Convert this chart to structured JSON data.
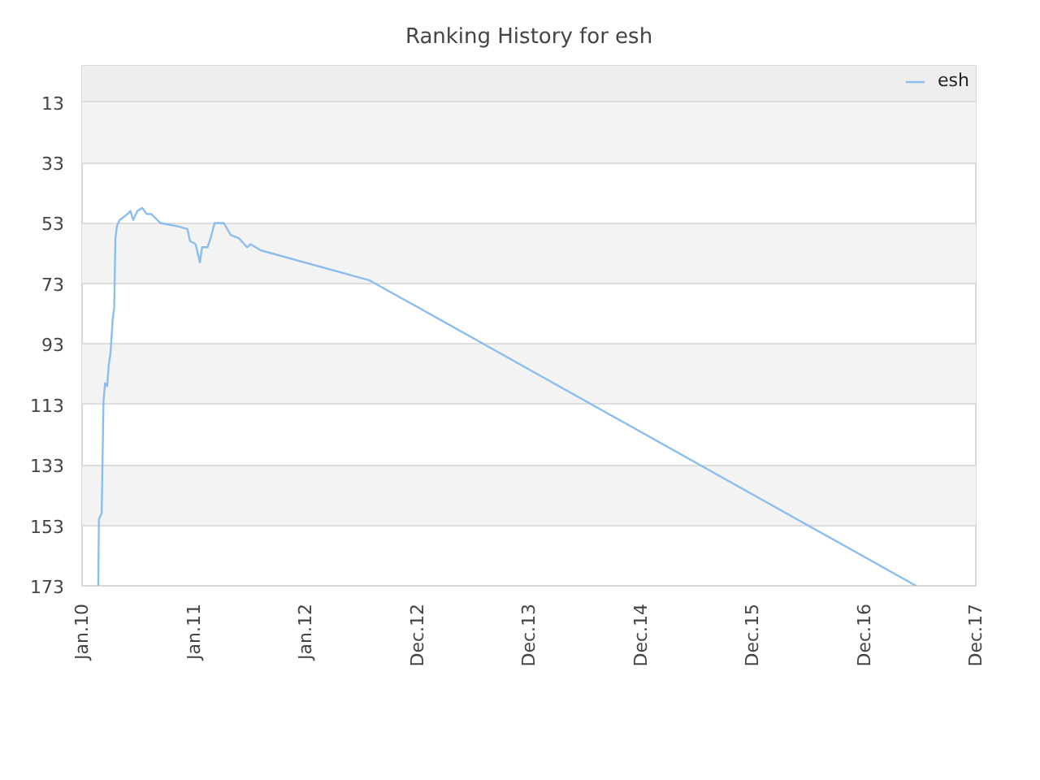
{
  "chart_data": {
    "type": "line",
    "title": "Ranking History for esh",
    "x": [
      "2010-02-23",
      "2010-02-25",
      "2010-03-06",
      "2010-03-07",
      "2010-03-12",
      "2010-03-17",
      "2010-03-24",
      "2010-03-29",
      "2010-04-04",
      "2010-04-11",
      "2010-04-16",
      "2010-04-20",
      "2010-04-25",
      "2010-05-04",
      "2010-05-30",
      "2010-06-08",
      "2010-06-17",
      "2010-07-01",
      "2010-07-17",
      "2010-07-31",
      "2010-08-15",
      "2010-09-14",
      "2010-11-06",
      "2010-12-11",
      "2010-12-20",
      "2011-01-07",
      "2011-01-21",
      "2011-01-28",
      "2011-02-15",
      "2011-02-25",
      "2011-03-10",
      "2011-04-09",
      "2011-05-02",
      "2011-05-28",
      "2011-06-24",
      "2011-07-06",
      "2011-08-07",
      "2012-07-29",
      "2017-06-18"
    ],
    "series": [
      {
        "name": "esh",
        "color": "#8cbdf0",
        "values": [
          173,
          151,
          149,
          143,
          112,
          106,
          107,
          100,
          96,
          85,
          81,
          58,
          54,
          52,
          50,
          49,
          52,
          49,
          48,
          50,
          50,
          53,
          54,
          55,
          59,
          60,
          66,
          61,
          61,
          58,
          53,
          53,
          57,
          58,
          61,
          60,
          62,
          72,
          173
        ]
      }
    ],
    "xlim": [
      "2010-01-01",
      "2017-12-30"
    ],
    "xticks": [
      {
        "value": "2010-01-01",
        "label": "Jan.10"
      },
      {
        "value": "2011-01-01",
        "label": "Jan.11"
      },
      {
        "value": "2012-01-01",
        "label": "Jan.12"
      },
      {
        "value": "2012-12-31",
        "label": "Dec.12"
      },
      {
        "value": "2013-12-31",
        "label": "Dec.13"
      },
      {
        "value": "2014-12-31",
        "label": "Dec.14"
      },
      {
        "value": "2015-12-31",
        "label": "Dec.15"
      },
      {
        "value": "2016-12-30",
        "label": "Dec.16"
      },
      {
        "value": "2017-12-30",
        "label": "Dec.17"
      }
    ],
    "ylim": [
      173,
      1
    ],
    "yticks": [
      13,
      33,
      53,
      73,
      93,
      113,
      133,
      153,
      173
    ],
    "bands": [
      {
        "axis": "y",
        "from": 1,
        "to": 13,
        "color": "#eeeeee"
      },
      {
        "axis": "y",
        "from": 13,
        "to": 33,
        "color": "#f3f3f3"
      },
      {
        "axis": "y",
        "from": 53,
        "to": 73,
        "color": "#f3f3f3"
      },
      {
        "axis": "y",
        "from": 93,
        "to": 113,
        "color": "#f3f3f3"
      },
      {
        "axis": "y",
        "from": 133,
        "to": 153,
        "color": "#f3f3f3"
      }
    ],
    "grid": "y",
    "legend": "top right"
  }
}
